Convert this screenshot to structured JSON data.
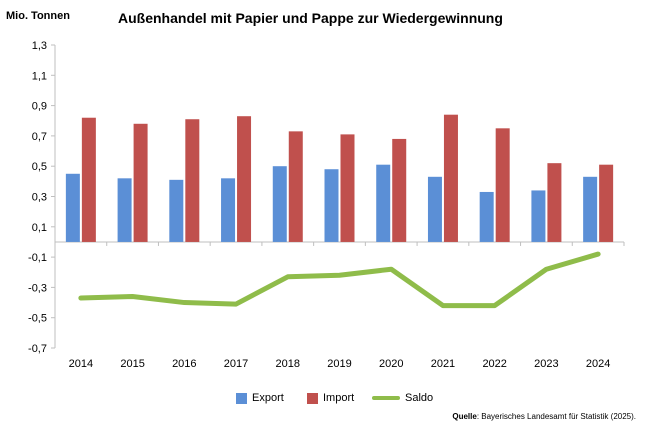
{
  "header": {
    "unit_label": "Mio. Tonnen",
    "title": "Außenhandel mit Papier und Pappe zur Wiedergewinnung"
  },
  "legend": {
    "export": "Export",
    "import": "Import",
    "saldo": "Saldo"
  },
  "source": {
    "label": "Quelle",
    "text": ": Bayerisches Landesamt für Statistik (2025)."
  },
  "colors": {
    "export": "#5B8FD6",
    "import": "#C0504D",
    "saldo": "#8FBC4A",
    "axis": "#BFBFBF"
  },
  "chart_data": {
    "type": "bar",
    "categories": [
      "2014",
      "2015",
      "2016",
      "2017",
      "2018",
      "2019",
      "2020",
      "2021",
      "2022",
      "2023",
      "2024"
    ],
    "series": [
      {
        "name": "Export",
        "type": "bar",
        "values": [
          0.45,
          0.42,
          0.41,
          0.42,
          0.5,
          0.48,
          0.51,
          0.43,
          0.33,
          0.34,
          0.43
        ]
      },
      {
        "name": "Import",
        "type": "bar",
        "values": [
          0.82,
          0.78,
          0.81,
          0.83,
          0.73,
          0.71,
          0.68,
          0.84,
          0.75,
          0.52,
          0.51
        ]
      },
      {
        "name": "Saldo",
        "type": "line",
        "values": [
          -0.37,
          -0.36,
          -0.4,
          -0.41,
          -0.23,
          -0.22,
          -0.18,
          -0.42,
          -0.42,
          -0.18,
          -0.08
        ]
      }
    ],
    "yticks": [
      "1,3",
      "1,1",
      "0,9",
      "0,7",
      "0,5",
      "0,3",
      "0,1",
      "-0,1",
      "-0,3",
      "-0,5",
      "-0,7"
    ],
    "ylim": [
      -0.7,
      1.3
    ],
    "grid": false,
    "legend_position": "bottom"
  }
}
